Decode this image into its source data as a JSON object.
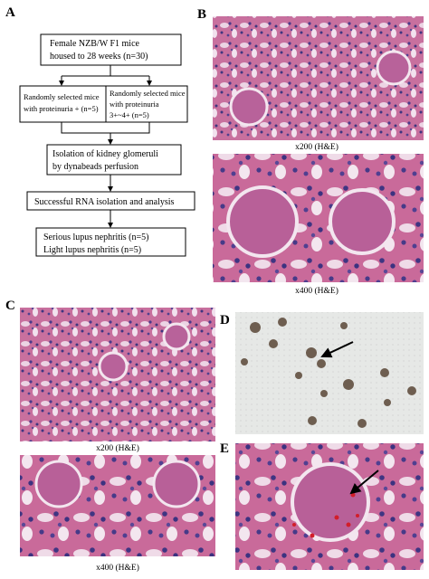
{
  "panels": {
    "a": {
      "label": "A",
      "flowchart": {
        "nodes": [
          {
            "lines": [
              "Female NZB/W F1 mice",
              "housed to 28 weeks (n=30)"
            ]
          },
          {
            "lines": [
              "Randomly selected mice",
              "with proteinuria + (n=5)"
            ]
          },
          {
            "lines": [
              "Randomly selected mice",
              "with proteinuria",
              "3+~4+ (n=5)"
            ]
          },
          {
            "lines": [
              "Isolation of kidney glomeruli",
              "by dynabeads perfusion"
            ]
          },
          {
            "lines": [
              "Successful RNA isolation and analysis"
            ]
          },
          {
            "lines": [
              "Serious lupus nephritis (n=5)",
              "Light lupus nephritis (n=5)"
            ]
          }
        ]
      }
    },
    "b": {
      "label": "B",
      "captions": [
        "x200 (H&E)",
        "x400 (H&E)"
      ]
    },
    "c": {
      "label": "C",
      "captions": [
        "x200 (H&E)",
        "x400 (H&E)"
      ]
    },
    "d": {
      "label": "D"
    },
    "e": {
      "label": "E"
    }
  }
}
